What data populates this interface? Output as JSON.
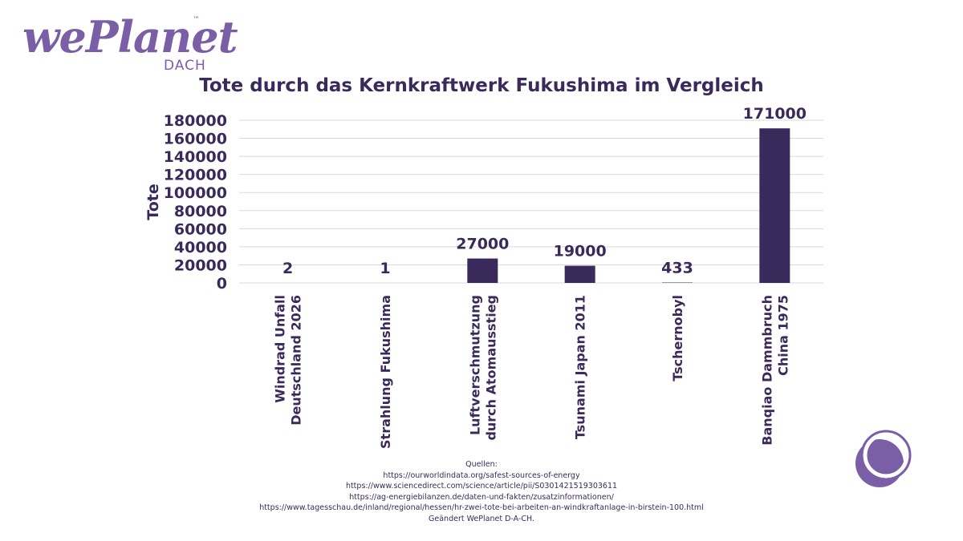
{
  "logo": {
    "brand": "wePlanet",
    "trademark": "™",
    "subtitle": "DACH"
  },
  "chart_data": {
    "type": "bar",
    "title": "Tote durch das Kernkraftwerk Fukushima im Vergleich",
    "xlabel": "",
    "ylabel": "Tote",
    "ylim": [
      0,
      180000
    ],
    "yticks": [
      0,
      20000,
      40000,
      60000,
      80000,
      100000,
      120000,
      140000,
      160000,
      180000
    ],
    "grid": true,
    "categories": [
      [
        "Windrad Unfall",
        "Deutschland 2026"
      ],
      [
        "Strahlung Fukushima"
      ],
      [
        "Luftverschmutzung",
        "durch Atomausstieg"
      ],
      [
        "Tsunami Japan 2011"
      ],
      [
        "Tschernobyl"
      ],
      [
        "Banqiao Dammbruch",
        "China 1975"
      ]
    ],
    "values": [
      2,
      1,
      27000,
      19000,
      433,
      171000
    ],
    "data_labels": [
      "2",
      "1",
      "27000",
      "19000",
      "433",
      "171000"
    ],
    "bar_color": "#3a2a5c"
  },
  "sources": [
    "Quellen:",
    "https://ourworldindata.org/safest-sources-of-energy",
    "https://www.sciencedirect.com/science/article/pii/S0301421519303611",
    "https://ag-energiebilanzen.de/daten-und-fakten/zusatzinformationen/",
    "https://www.tagesschau.de/inland/regional/hessen/hr-zwei-tote-bei-arbeiten-an-windkraftanlage-in-birstein-100.html",
    "Geändert WePlanet D-A-CH."
  ],
  "colors": {
    "primary": "#3a2a5c",
    "accent": "#7a5fa6",
    "grid": "#d9d9d9"
  }
}
